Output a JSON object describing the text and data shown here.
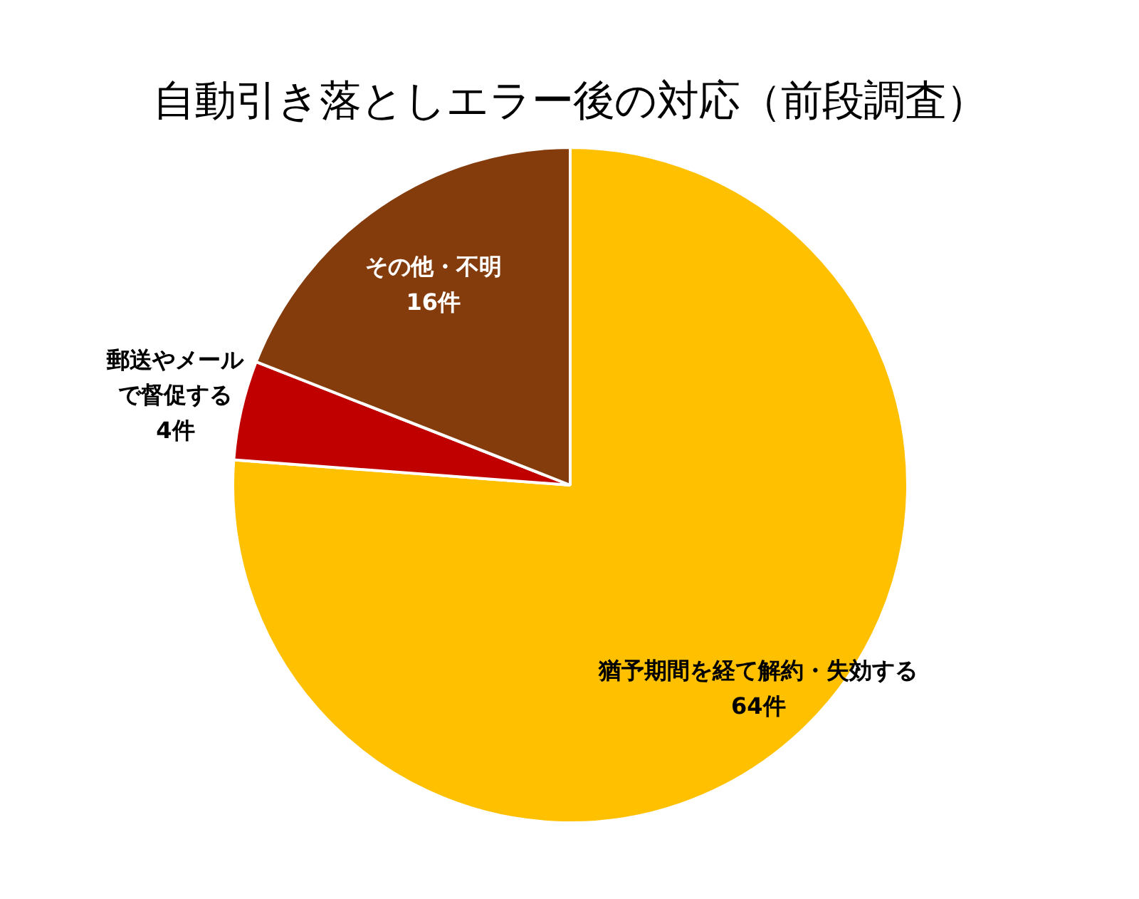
{
  "chart_data": {
    "type": "pie",
    "title": "自動引き落としエラー後の対応（前段調査）",
    "categories": [
      "猶予期間を経て解約・失効する",
      "郵送やメールで督促する",
      "その他・不明"
    ],
    "values": [
      64,
      4,
      16
    ],
    "value_labels": [
      "64件",
      "4件",
      "16件"
    ],
    "colors": [
      "#ffc000",
      "#c00000",
      "#843c0c"
    ]
  }
}
